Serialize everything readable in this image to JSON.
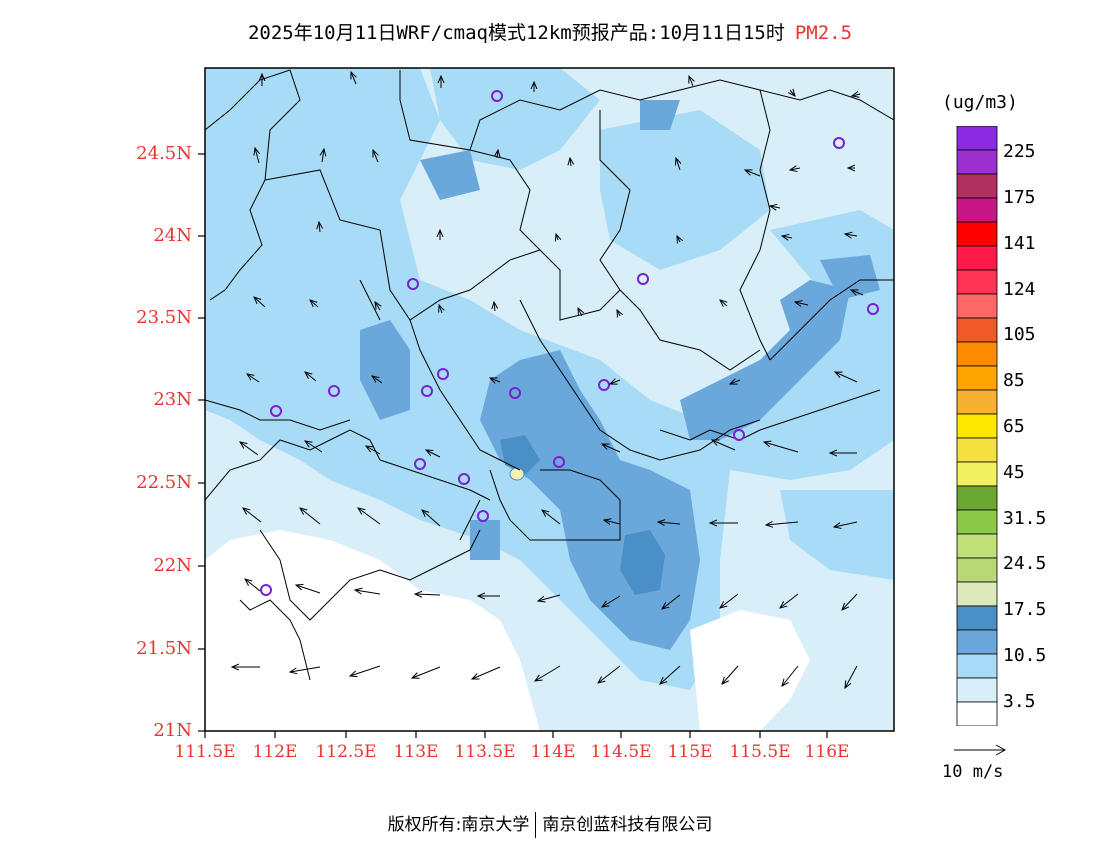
{
  "title": {
    "text": "2025年10月11日WRF/cmaq模式12km预报产品:10月11日15时",
    "pollutant": "PM2.5"
  },
  "axes": {
    "lat_ticks": [
      "24.5N",
      "24N",
      "23.5N",
      "23N",
      "22.5N",
      "22N",
      "21.5N",
      "21N"
    ],
    "lon_ticks": [
      "111.5E",
      "112E",
      "112.5E",
      "113E",
      "113.5E",
      "114E",
      "114.5E",
      "115E",
      "115.5E",
      "116E"
    ]
  },
  "legend": {
    "unit": "(ug/m3)",
    "labels": [
      "225",
      "175",
      "141",
      "124",
      "105",
      "85",
      "65",
      "45",
      "31.5",
      "24.5",
      "17.5",
      "10.5",
      "3.5"
    ],
    "colors": [
      "#8a2be2",
      "#9b30d0",
      "#b03060",
      "#c71585",
      "#ff0000",
      "#ff1a4a",
      "#ff3355",
      "#ff6666",
      "#f05a28",
      "#ff8c00",
      "#ffa500",
      "#f7b032",
      "#ffe800",
      "#f5e040",
      "#f0f060",
      "#6aa630",
      "#8cc84a",
      "#c2e07a",
      "#b8d878",
      "#dde9b8",
      "#4a8fc6",
      "#6aa8dc",
      "#a8dbf5",
      "#d8eef9",
      "#ffffff"
    ]
  },
  "wind_scale": {
    "label": "10 m/s"
  },
  "footer": {
    "left": "版权所有:南京大学",
    "right": "南京创蓝科技有限公司"
  },
  "colors": {
    "tick": "#e8352f",
    "station": "#7a1fd1",
    "hotspot": "#f4f1b6"
  }
}
